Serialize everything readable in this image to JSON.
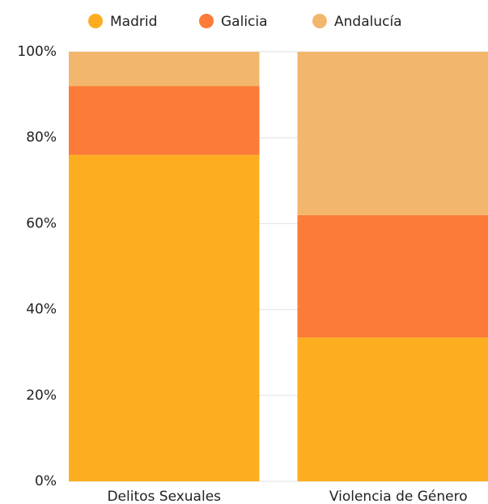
{
  "chart_data": {
    "type": "stacked_bar",
    "categories": [
      "Delitos Sexuales",
      "Violencia de Género"
    ],
    "series": [
      {
        "name": "Madrid",
        "color": "#fdae20",
        "values": [
          76,
          33.5
        ]
      },
      {
        "name": "Galicia",
        "color": "#fd7b38",
        "values": [
          16,
          28.5
        ]
      },
      {
        "name": "Andalucía",
        "color": "#f2b76c",
        "values": [
          8,
          38
        ]
      }
    ],
    "ylim": [
      0,
      100
    ],
    "yticks": [
      {
        "value": 0,
        "label": "0%"
      },
      {
        "value": 20,
        "label": "20%"
      },
      {
        "value": 40,
        "label": "40%"
      },
      {
        "value": 60,
        "label": "60%"
      },
      {
        "value": 80,
        "label": "80%"
      },
      {
        "value": 100,
        "label": "100%"
      }
    ],
    "grid": true,
    "legend": "top"
  }
}
